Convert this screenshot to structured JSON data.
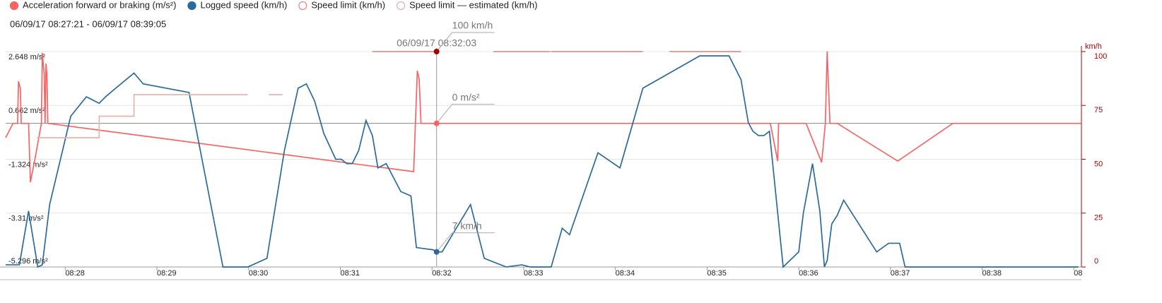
{
  "chart_data": {
    "type": "line",
    "subtitle": "06/09/17 08:27:21 - 06/09/17 08:39:05",
    "xlim": [
      27.35,
      39.083
    ],
    "xticks": [
      {
        "value": 28,
        "label": "08:28"
      },
      {
        "value": 29,
        "label": "08:29"
      },
      {
        "value": 30,
        "label": "08:30"
      },
      {
        "value": 31,
        "label": "08:31"
      },
      {
        "value": 32,
        "label": "08:32"
      },
      {
        "value": 33,
        "label": "08:33"
      },
      {
        "value": 34,
        "label": "08:34"
      },
      {
        "value": 35,
        "label": "08:35"
      },
      {
        "value": 36,
        "label": "08:36"
      },
      {
        "value": 37,
        "label": "08:37"
      },
      {
        "value": 38,
        "label": "08:38"
      },
      {
        "value": 39,
        "label": "08"
      }
    ],
    "ylim": [
      -5.296,
      2.648
    ],
    "yticks": [
      {
        "value": 2.648,
        "label": "2.648 m/s²"
      },
      {
        "value": 0.662,
        "label": "0.662 m/s²"
      },
      {
        "value": -1.324,
        "label": "-1.324 m/s²"
      },
      {
        "value": -3.31,
        "label": "-3.31 m/s²"
      },
      {
        "value": -5.296,
        "label": "-5.296 m/s²"
      }
    ],
    "y2label": "km/h",
    "y2lim": [
      0,
      100
    ],
    "y2ticks": [
      0,
      25,
      50,
      75,
      100
    ],
    "grid": true,
    "series": [
      {
        "name": "Acceleration forward or braking (m/s²)",
        "color": "#f86464",
        "marker": "filled",
        "axis": "y",
        "x": [
          27.35,
          27.43,
          27.48,
          27.49,
          27.51,
          27.52,
          27.6,
          27.62,
          27.67,
          27.74,
          27.75,
          27.77,
          27.78,
          27.79,
          27.8,
          27.81,
          31.8,
          31.84,
          31.86,
          31.88,
          35.69,
          35.77,
          35.78,
          36.08,
          36.25,
          36.29,
          36.31,
          36.34,
          36.42,
          37.08,
          37.68,
          39.08
        ],
        "values": [
          -0.53,
          0,
          0,
          1.55,
          1.29,
          0,
          0,
          -2.17,
          -1.31,
          0,
          2.6,
          1.81,
          0,
          2.2,
          1.81,
          0,
          -1.78,
          1.94,
          1.63,
          0,
          0,
          -1.39,
          0,
          0,
          -1.44,
          0,
          2.65,
          0,
          0,
          -1.39,
          0,
          0
        ]
      },
      {
        "name": "Logged speed (km/h)",
        "color": "#2b6a9b",
        "marker": "filled",
        "axis": "y2",
        "x": [
          27.35,
          27.5,
          27.6,
          27.7,
          27.75,
          27.83,
          28.06,
          28.23,
          28.37,
          28.44,
          28.55,
          28.75,
          28.85,
          29.35,
          29.72,
          29.99,
          30.2,
          30.39,
          30.54,
          30.63,
          30.72,
          30.82,
          30.95,
          31.01,
          31.07,
          31.13,
          31.2,
          31.28,
          31.35,
          31.41,
          31.5,
          31.66,
          31.77,
          31.83,
          32.01,
          32.05,
          32.11,
          32.42,
          32.57,
          32.81,
          32.98,
          33.07,
          33.3,
          33.42,
          33.5,
          33.81,
          34.05,
          34.3,
          34.92,
          35.24,
          35.37,
          35.45,
          35.5,
          35.56,
          35.62,
          35.68,
          35.83,
          36.0,
          36.05,
          36.15,
          36.23,
          36.28,
          36.31,
          36.36,
          36.42,
          36.49,
          36.85,
          36.98,
          37.1,
          37.16,
          39.05
        ],
        "values": [
          1,
          1,
          26,
          0,
          1,
          29,
          70,
          79,
          76,
          79,
          83,
          90,
          85,
          81,
          0,
          0,
          4,
          54,
          83,
          85,
          77,
          62,
          50,
          50,
          48,
          48,
          54,
          68,
          61,
          46,
          48,
          35,
          33,
          9,
          8,
          7,
          7,
          29,
          4,
          0,
          1,
          0,
          0,
          18,
          15,
          53,
          46,
          83,
          98,
          98,
          87,
          67,
          63,
          61,
          61,
          63,
          0,
          7,
          25,
          48,
          26,
          0,
          3,
          20,
          24,
          31,
          7,
          11,
          11,
          0,
          0
        ]
      },
      {
        "name": "Speed limit (km/h)",
        "color": "#ec8a8a",
        "marker": "hollow",
        "axis": "y2",
        "x": [
          31.35,
          32.03,
          32.35,
          32.67,
          33.29,
          33.295,
          33.3,
          34.3,
          34.45,
          34.59,
          35.37
        ],
        "values": [
          100,
          100,
          null,
          100,
          100,
          null,
          100,
          100,
          null,
          100,
          100
        ]
      },
      {
        "name": "Speed limit — estimated (km/h)",
        "color": "#e2b6ae",
        "marker": "hollow",
        "axis": "y2",
        "x": [
          27.69,
          28.37,
          28.37,
          28.75,
          28.75,
          29.99,
          30.1,
          30.22,
          30.37
        ],
        "values": [
          60,
          60,
          70,
          70,
          80,
          80,
          null,
          80,
          80
        ]
      }
    ],
    "cursor": {
      "label": "06/09/17 08:32:03",
      "x": 32.05,
      "readouts": [
        {
          "value": 100,
          "label": "100 km/h",
          "axis": "y2",
          "color": "#a80000"
        },
        {
          "value": 0,
          "label": "0 m/s²",
          "axis": "y",
          "color": "#f86464"
        },
        {
          "value": 7,
          "label": "7 km/h",
          "axis": "y2",
          "color": "#2b6a9b"
        }
      ]
    }
  }
}
